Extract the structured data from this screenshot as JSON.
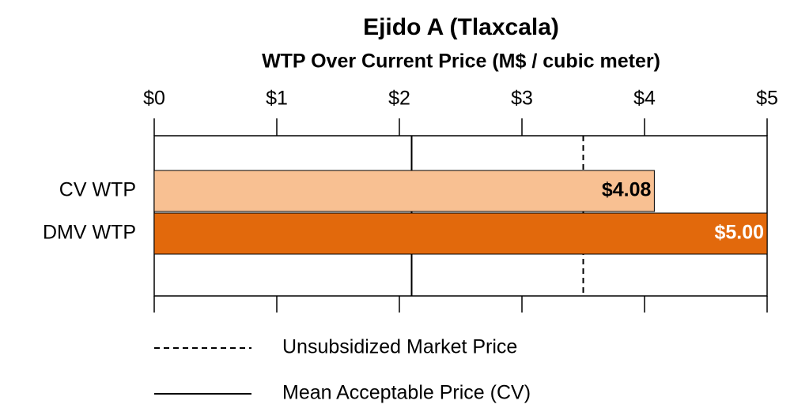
{
  "chart_data": {
    "type": "bar",
    "orientation": "horizontal",
    "title": "Ejido A (Tlaxcala)",
    "subtitle": "WTP Over Current Price (M$ / cubic meter)",
    "categories": [
      "CV WTP",
      "DMV WTP"
    ],
    "values": [
      4.08,
      5.0
    ],
    "value_labels": [
      "$4.08",
      "$5.00"
    ],
    "colors": [
      "#f8c092",
      "#e2690c"
    ],
    "value_label_colors": [
      "#000000",
      "#ffffff"
    ],
    "xlim": [
      0,
      5
    ],
    "xticks": [
      {
        "value": 0,
        "label": "$0"
      },
      {
        "value": 1,
        "label": "$1"
      },
      {
        "value": 2,
        "label": "$2"
      },
      {
        "value": 3,
        "label": "$3"
      },
      {
        "value": 4,
        "label": "$4"
      },
      {
        "value": 5,
        "label": "$5"
      }
    ],
    "reference_lines": [
      {
        "name": "Unsubsidized Market Price",
        "value": 3.5,
        "style": "dashed"
      },
      {
        "name": "Mean Acceptable Price (CV)",
        "value": 2.1,
        "style": "solid"
      }
    ]
  }
}
